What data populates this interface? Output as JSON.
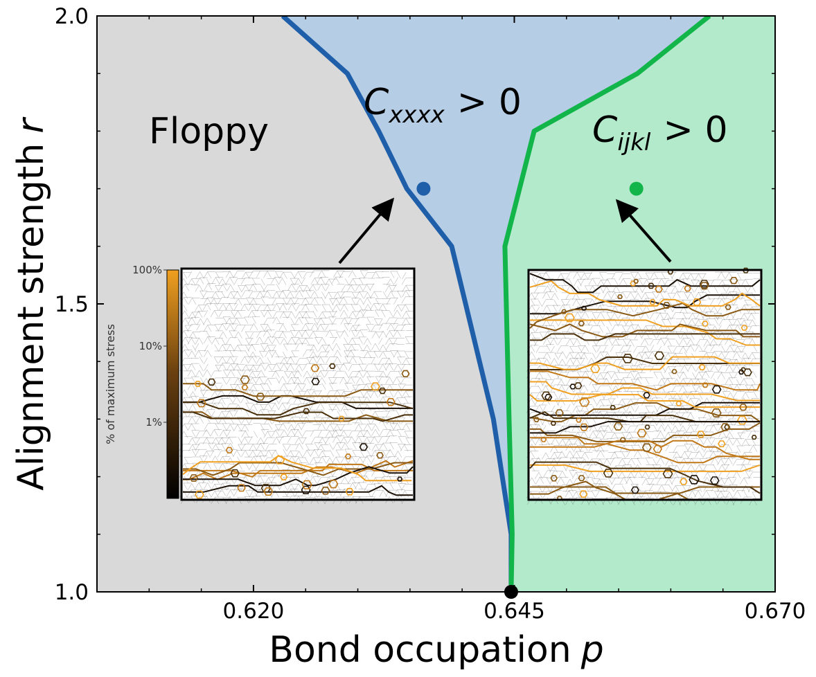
{
  "chart_data": {
    "type": "area",
    "xlabel": "Bond occupation",
    "xlabel_var": "p",
    "ylabel": "Alignment strength",
    "ylabel_var": "r",
    "xlim": [
      0.605,
      0.67
    ],
    "ylim": [
      1.0,
      2.0
    ],
    "x_ticks": [
      0.62,
      0.645,
      0.67
    ],
    "x_tick_labels": [
      "0.620",
      "0.645",
      "0.670"
    ],
    "y_ticks": [
      1.0,
      1.5,
      2.0
    ],
    "y_tick_labels": [
      "1.0",
      "1.5",
      "2.0"
    ],
    "series": [
      {
        "color": "#1f5faa",
        "points": [
          [
            0.6447,
            1.0
          ],
          [
            0.6447,
            1.1
          ],
          [
            0.643,
            1.3
          ],
          [
            0.639,
            1.6
          ],
          [
            0.6347,
            1.7
          ],
          [
            0.632,
            1.8
          ],
          [
            0.629,
            1.9
          ],
          [
            0.6228,
            2.0
          ]
        ]
      },
      {
        "color": "#11b54a",
        "points": [
          [
            0.6447,
            1.0
          ],
          [
            0.6448,
            1.1
          ],
          [
            0.6445,
            1.3
          ],
          [
            0.6441,
            1.6
          ],
          [
            0.6469,
            1.8
          ],
          [
            0.6568,
            1.9
          ],
          [
            0.6637,
            2.0
          ]
        ]
      }
    ],
    "regions": [
      {
        "label": "Floppy",
        "color": "#d9d9d9"
      },
      {
        "label_main": "C",
        "label_sub": "xxxx",
        "label_rel": "> 0",
        "color": "#b6cde6"
      },
      {
        "label_main": "C",
        "label_sub": "ijkl",
        "label_rel": "> 0",
        "color": "#b3eacb"
      }
    ],
    "markers": [
      {
        "x": 0.6363,
        "y": 1.7,
        "color": "#1f5faa"
      },
      {
        "x": 0.6567,
        "y": 1.7,
        "color": "#11b54a"
      },
      {
        "x": 0.6447,
        "y": 1.0,
        "color": "#000000"
      }
    ],
    "insets": [
      {
        "name": "inset-left",
        "points_to": 0,
        "has_colorbar": true
      },
      {
        "name": "inset-right",
        "points_to": 1,
        "has_colorbar": false
      }
    ],
    "colorbar": {
      "title": "% of maximum stress",
      "tick_labels": [
        "100%",
        "10%",
        "1%"
      ],
      "color_low": "#000000",
      "color_high": "#f0a020"
    }
  }
}
